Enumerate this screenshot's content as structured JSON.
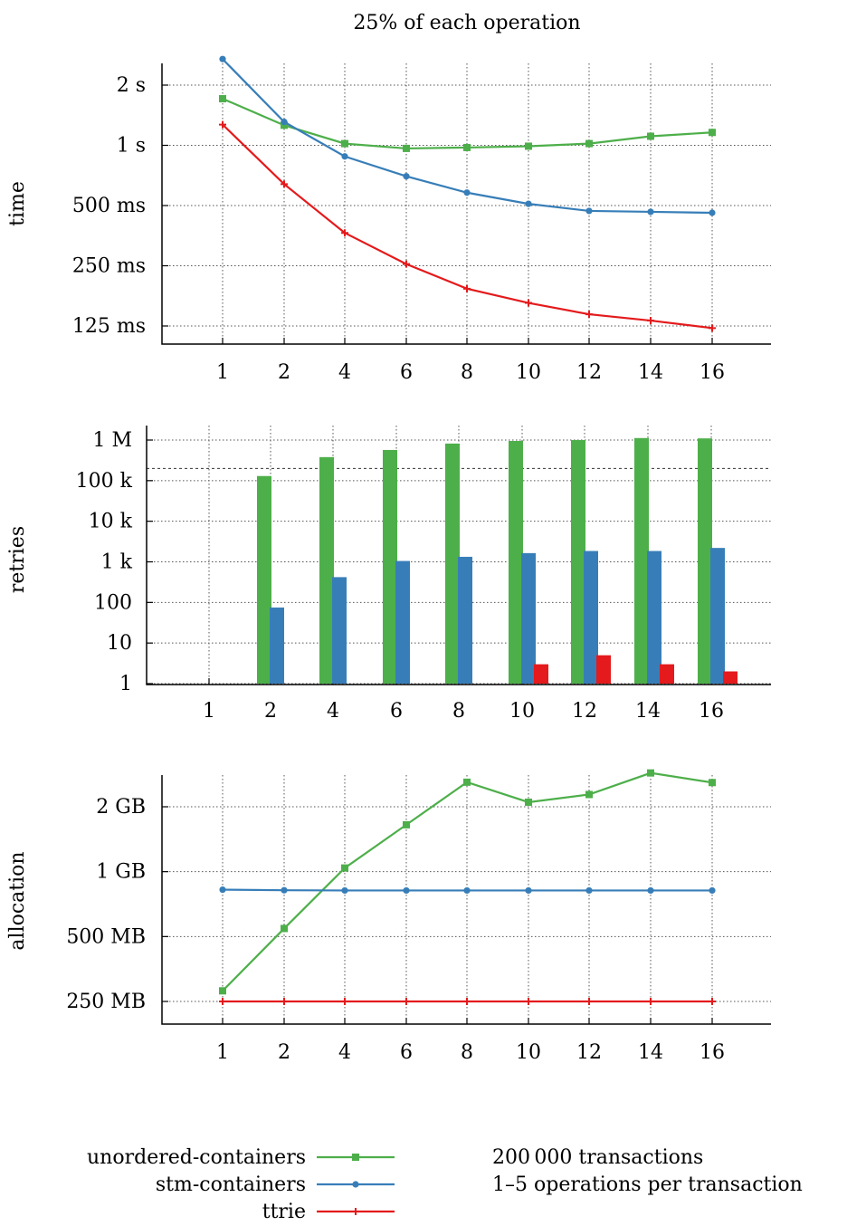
{
  "title": "25% of each operation",
  "colors": {
    "unordered": "#4daf4a",
    "stm": "#377eb8",
    "ttrie": "#e41a1c"
  },
  "legend": {
    "unordered": "unordered-containers",
    "stm": "stm-containers",
    "ttrie": "ttrie"
  },
  "notes": [
    "200 000 transactions",
    "1–5 operations per transaction"
  ],
  "chart_data": [
    {
      "type": "line",
      "ylabel": "time",
      "yscale": "log",
      "x_categories": [
        "1",
        "2",
        "4",
        "6",
        "8",
        "10",
        "12",
        "14",
        "16"
      ],
      "y_ticks": [
        {
          "value": 2000,
          "label": "2 s"
        },
        {
          "value": 1000,
          "label": "1 s"
        },
        {
          "value": 500,
          "label": "500 ms"
        },
        {
          "value": 250,
          "label": "250 ms"
        },
        {
          "value": 125,
          "label": "125 ms"
        }
      ],
      "y_range_ms": [
        100,
        2900
      ],
      "grid": true,
      "series": [
        {
          "key": "unordered",
          "name": "unordered-containers",
          "marker": "square",
          "values": [
            1710,
            1260,
            1020,
            965,
            975,
            990,
            1020,
            1110,
            1160
          ]
        },
        {
          "key": "stm",
          "name": "stm-containers",
          "marker": "circle",
          "values": [
            2700,
            1310,
            880,
            700,
            580,
            510,
            470,
            465,
            460
          ]
        },
        {
          "key": "ttrie",
          "name": "ttrie",
          "marker": "plus",
          "values": [
            1270,
            640,
            365,
            255,
            192,
            163,
            143,
            133,
            122
          ]
        }
      ]
    },
    {
      "type": "bar",
      "ylabel": "retries",
      "yscale": "log",
      "x_categories": [
        "1",
        "2",
        "4",
        "6",
        "8",
        "10",
        "12",
        "14",
        "16"
      ],
      "y_ticks": [
        {
          "value": 1000000,
          "label": "1 M"
        },
        {
          "value": 100000,
          "label": "100 k"
        },
        {
          "value": 10000,
          "label": "10 k"
        },
        {
          "value": 1000,
          "label": "1 k"
        },
        {
          "value": 100,
          "label": "100"
        },
        {
          "value": 10,
          "label": "10"
        },
        {
          "value": 1,
          "label": "1"
        }
      ],
      "y_range": [
        1,
        1000000
      ],
      "reference_line": 200000,
      "grid": true,
      "series": [
        {
          "key": "unordered",
          "name": "unordered-containers",
          "values": [
            0,
            130000,
            380000,
            570000,
            820000,
            950000,
            1000000,
            1120000,
            1100000
          ]
        },
        {
          "key": "stm",
          "name": "stm-containers",
          "values": [
            0,
            75,
            420,
            1050,
            1330,
            1640,
            1850,
            1850,
            2200
          ]
        },
        {
          "key": "ttrie",
          "name": "ttrie",
          "values": [
            0,
            0,
            0,
            0,
            0,
            3,
            5,
            3,
            2
          ]
        }
      ]
    },
    {
      "type": "line",
      "ylabel": "allocation",
      "yscale": "log",
      "x_categories": [
        "1",
        "2",
        "4",
        "6",
        "8",
        "10",
        "12",
        "14",
        "16"
      ],
      "y_ticks": [
        {
          "value": 2000,
          "label": "2 GB"
        },
        {
          "value": 1000,
          "label": "1 GB"
        },
        {
          "value": 500,
          "label": "500 MB"
        },
        {
          "value": 250,
          "label": "250 MB"
        }
      ],
      "y_range_mb": [
        200,
        3000
      ],
      "grid": true,
      "series": [
        {
          "key": "unordered",
          "name": "unordered-containers",
          "marker": "square",
          "values": [
            280,
            545,
            1040,
            1650,
            2600,
            2100,
            2280,
            2870,
            2590
          ]
        },
        {
          "key": "stm",
          "name": "stm-containers",
          "marker": "circle",
          "values": [
            825,
            820,
            818,
            818,
            818,
            818,
            818,
            818,
            818
          ]
        },
        {
          "key": "ttrie",
          "name": "ttrie",
          "marker": "plus",
          "values": [
            250,
            250,
            250,
            250,
            250,
            250,
            250,
            250,
            250
          ]
        }
      ]
    }
  ]
}
